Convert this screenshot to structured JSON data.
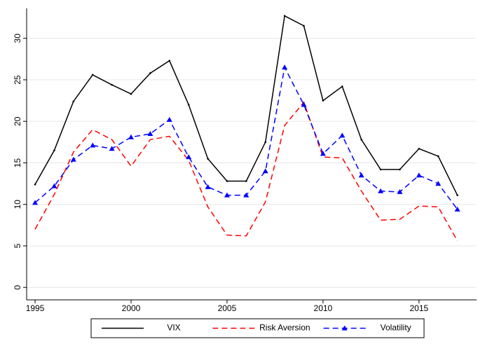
{
  "chart_data": {
    "type": "line",
    "x": [
      1995,
      1996,
      1997,
      1998,
      1999,
      2000,
      2001,
      2002,
      2003,
      2004,
      2005,
      2006,
      2007,
      2008,
      2009,
      2010,
      2011,
      2012,
      2013,
      2014,
      2015,
      2016,
      2017
    ],
    "series": [
      {
        "name": "VIX",
        "color": "#000000",
        "style": "solid",
        "marker": "point",
        "values": [
          12.4,
          16.5,
          22.4,
          25.6,
          24.4,
          23.3,
          25.8,
          27.3,
          22.0,
          15.5,
          12.8,
          12.8,
          17.5,
          32.7,
          31.5,
          22.5,
          24.2,
          17.8,
          14.2,
          14.2,
          16.7,
          15.8,
          11.1
        ]
      },
      {
        "name": "Risk Aversion",
        "color": "#ff0000",
        "style": "dashed",
        "marker": "none",
        "values": [
          7.0,
          11.2,
          16.3,
          19.0,
          17.8,
          14.6,
          17.8,
          18.2,
          15.3,
          9.7,
          6.3,
          6.2,
          10.3,
          19.5,
          22.3,
          15.7,
          15.6,
          11.6,
          8.1,
          8.2,
          9.8,
          9.7,
          5.6
        ]
      },
      {
        "name": "Volatility",
        "color": "#0000ff",
        "style": "dashed",
        "marker": "triangle",
        "values": [
          10.2,
          12.2,
          15.4,
          17.1,
          16.7,
          18.1,
          18.5,
          20.2,
          15.7,
          12.1,
          11.1,
          11.1,
          14.0,
          26.5,
          22.0,
          16.1,
          18.3,
          13.5,
          11.6,
          11.5,
          13.5,
          12.5,
          9.4
        ]
      }
    ],
    "xlim": [
      1994.56,
      2018.0
    ],
    "xticks": [
      1995,
      2000,
      2005,
      2010,
      2015
    ],
    "ylim": [
      -1.5,
      33.6
    ],
    "yticks": [
      0,
      5,
      10,
      15,
      20,
      25,
      30
    ],
    "grid": true,
    "legend": "bottom"
  }
}
